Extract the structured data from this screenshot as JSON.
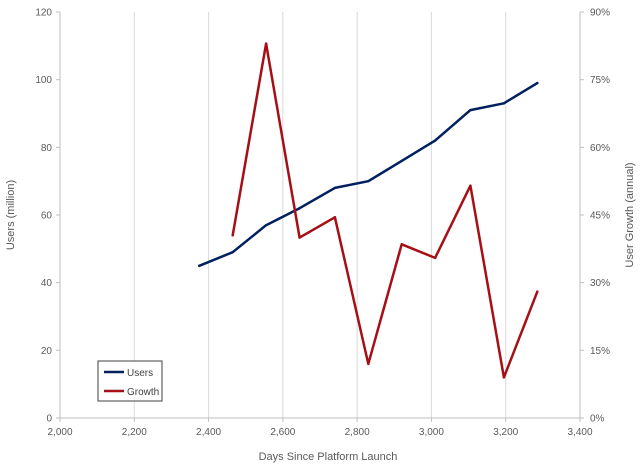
{
  "chart_data": {
    "type": "line",
    "x_label": "Days Since Platform Launch",
    "y_left_label": "Users (million)",
    "y_right_label": "User Growth (annual)",
    "x_range": [
      2000,
      3400
    ],
    "x_ticks": [
      2000,
      2200,
      2400,
      2600,
      2800,
      3000,
      3200,
      3400
    ],
    "x_tick_labels": [
      "2,000",
      "2,200",
      "2,400",
      "2,600",
      "2,800",
      "3,000",
      "3,200",
      "3,400"
    ],
    "y_left_range": [
      0,
      120
    ],
    "y_left_ticks": [
      0,
      20,
      40,
      60,
      80,
      100,
      120
    ],
    "y_left_tick_labels": [
      "0",
      "20",
      "40",
      "60",
      "80",
      "100",
      "120"
    ],
    "y_right_range": [
      0,
      0.9
    ],
    "y_right_ticks": [
      0,
      0.15,
      0.3,
      0.45,
      0.6,
      0.75,
      0.9
    ],
    "y_right_tick_labels": [
      "0%",
      "15%",
      "30%",
      "45%",
      "60%",
      "75%",
      "90%"
    ],
    "grid": "vertical",
    "legend_position": "bottom-left",
    "series": [
      {
        "name": "Users",
        "axis": "left",
        "color": "#002060",
        "x": [
          2375,
          2465,
          2555,
          2645,
          2740,
          2830,
          2920,
          3010,
          3105,
          3195,
          3285
        ],
        "values": [
          45,
          49,
          57,
          62,
          68,
          70,
          76,
          82,
          91,
          93,
          99
        ]
      },
      {
        "name": "Growth",
        "axis": "right",
        "color": "#A50F15",
        "x": [
          2465,
          2555,
          2645,
          2740,
          2830,
          2920,
          3010,
          3105,
          3195,
          3285
        ],
        "values": [
          0.405,
          0.83,
          0.4,
          0.445,
          0.12,
          0.385,
          0.355,
          0.515,
          0.09,
          0.28
        ]
      }
    ]
  }
}
